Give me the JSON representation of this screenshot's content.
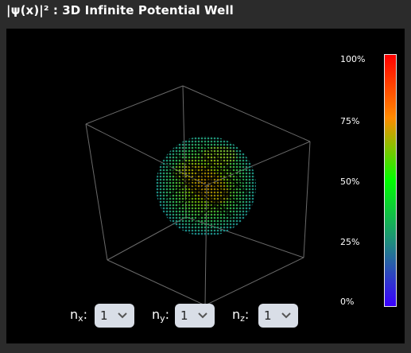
{
  "title": "|ψ(x)|² : 3D Infinite Potential Well",
  "colorbar": {
    "ticks": [
      "100%",
      "75%",
      "50%",
      "25%",
      "0%"
    ],
    "gradient": [
      "#ff0000",
      "#ff8a00",
      "#00ff00",
      "#1f8a80",
      "#3a00ff"
    ]
  },
  "controls": {
    "nx": {
      "label": "n",
      "sub": "x",
      "value": "1"
    },
    "ny": {
      "label": "n",
      "sub": "y",
      "value": "1"
    },
    "nz": {
      "label": "n",
      "sub": "z",
      "value": "1"
    }
  },
  "icons": {
    "dropdown": "chevron-down-icon"
  }
}
